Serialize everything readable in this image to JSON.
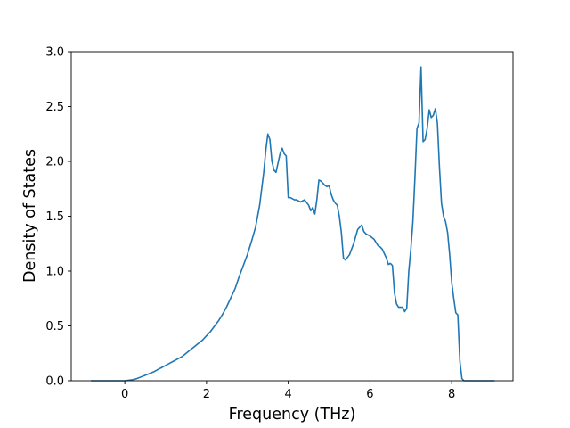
{
  "chart_data": {
    "type": "line",
    "title": "",
    "xlabel": "Frequency (THz)",
    "ylabel": "Density of States",
    "xlim": [
      -1.31,
      9.5
    ],
    "ylim": [
      0,
      3.0
    ],
    "xticks": [
      0,
      2,
      4,
      6,
      8
    ],
    "xtick_labels": [
      "0",
      "2",
      "4",
      "6",
      "8"
    ],
    "yticks": [
      0,
      0.5,
      1.0,
      1.5,
      2.0,
      2.5,
      3.0
    ],
    "ytick_labels": [
      "0.0",
      "0.5",
      "1.0",
      "1.5",
      "2.0",
      "2.5",
      "3.0"
    ],
    "grid": false,
    "line_color": "#1f77b4",
    "series": [
      {
        "x": [
          -0.83,
          -0.5,
          -0.2,
          0.0,
          0.1,
          0.2,
          0.3,
          0.4,
          0.5,
          0.6,
          0.7,
          0.8,
          0.9,
          1.0,
          1.1,
          1.2,
          1.3,
          1.4,
          1.5,
          1.6,
          1.7,
          1.8,
          1.9,
          2.0,
          2.1,
          2.2,
          2.3,
          2.4,
          2.5,
          2.6,
          2.7,
          2.8,
          2.9,
          3.0,
          3.1,
          3.2,
          3.3,
          3.4,
          3.45,
          3.5,
          3.55,
          3.6,
          3.65,
          3.7,
          3.8,
          3.85,
          3.9,
          3.95,
          4.0,
          4.05,
          4.1,
          4.15,
          4.2,
          4.3,
          4.4,
          4.5,
          4.55,
          4.6,
          4.65,
          4.7,
          4.75,
          4.8,
          4.85,
          4.9,
          4.95,
          5.0,
          5.05,
          5.1,
          5.15,
          5.2,
          5.25,
          5.3,
          5.35,
          5.4,
          5.5,
          5.6,
          5.7,
          5.75,
          5.8,
          5.85,
          5.9,
          5.95,
          6.0,
          6.1,
          6.2,
          6.25,
          6.3,
          6.4,
          6.45,
          6.5,
          6.55,
          6.6,
          6.65,
          6.7,
          6.75,
          6.8,
          6.85,
          6.9,
          6.95,
          7.0,
          7.05,
          7.1,
          7.15,
          7.2,
          7.25,
          7.3,
          7.35,
          7.4,
          7.45,
          7.5,
          7.55,
          7.6,
          7.65,
          7.7,
          7.75,
          7.8,
          7.85,
          7.9,
          7.95,
          8.0,
          8.05,
          8.1,
          8.15,
          8.2,
          8.25,
          8.3,
          8.4,
          8.7,
          9.05
        ],
        "y": [
          0.0,
          0.0,
          0.0,
          0.0,
          0.005,
          0.01,
          0.02,
          0.035,
          0.05,
          0.065,
          0.08,
          0.1,
          0.12,
          0.14,
          0.16,
          0.18,
          0.2,
          0.22,
          0.25,
          0.28,
          0.31,
          0.34,
          0.37,
          0.41,
          0.45,
          0.5,
          0.55,
          0.61,
          0.68,
          0.76,
          0.84,
          0.95,
          1.05,
          1.15,
          1.27,
          1.4,
          1.6,
          1.9,
          2.1,
          2.25,
          2.2,
          2.0,
          1.92,
          1.9,
          2.07,
          2.12,
          2.07,
          2.05,
          1.67,
          1.67,
          1.66,
          1.65,
          1.65,
          1.63,
          1.65,
          1.6,
          1.55,
          1.58,
          1.52,
          1.65,
          1.83,
          1.82,
          1.8,
          1.78,
          1.77,
          1.78,
          1.7,
          1.65,
          1.62,
          1.6,
          1.5,
          1.35,
          1.12,
          1.1,
          1.15,
          1.25,
          1.38,
          1.4,
          1.42,
          1.36,
          1.34,
          1.33,
          1.32,
          1.29,
          1.23,
          1.22,
          1.2,
          1.12,
          1.06,
          1.07,
          1.05,
          0.8,
          0.7,
          0.67,
          0.67,
          0.67,
          0.63,
          0.66,
          1.0,
          1.2,
          1.45,
          1.85,
          2.3,
          2.35,
          2.86,
          2.18,
          2.2,
          2.3,
          2.47,
          2.4,
          2.42,
          2.48,
          2.35,
          1.95,
          1.62,
          1.5,
          1.45,
          1.35,
          1.15,
          0.9,
          0.75,
          0.62,
          0.6,
          0.18,
          0.02,
          0.0,
          0.0,
          0.0,
          0.0
        ]
      }
    ]
  }
}
